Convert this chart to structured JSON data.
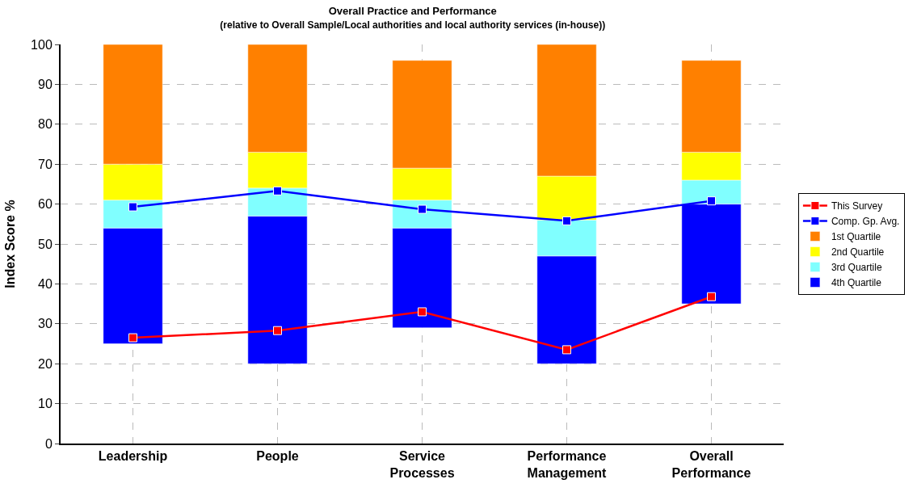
{
  "chart_data": {
    "type": "bar",
    "title": "Overall Practice and Performance",
    "subtitle": "(relative to Overall Sample/Local authorities and local authority services (in-house))",
    "ylabel": "Index Score %",
    "categories": [
      "Leadership",
      "People",
      "Service Processes",
      "Performance Management",
      "Overall Performance"
    ],
    "series": [
      {
        "name": "4th Quartile",
        "color": "#0000ff",
        "base": [
          25,
          20,
          29,
          20,
          35
        ],
        "values": [
          29,
          37,
          25,
          27,
          25
        ]
      },
      {
        "name": "3rd Quartile",
        "color": "#80ffff",
        "base": [
          54,
          57,
          54,
          47,
          60
        ],
        "values": [
          7,
          7,
          7,
          9,
          6
        ]
      },
      {
        "name": "2nd Quartile",
        "color": "#ffff00",
        "base": [
          61,
          64,
          61,
          56,
          66
        ],
        "values": [
          9,
          9,
          8,
          11,
          7
        ]
      },
      {
        "name": "1st Quartile",
        "color": "#ff8000",
        "base": [
          70,
          73,
          69,
          67,
          73
        ],
        "values": [
          30,
          27,
          27,
          33,
          23
        ]
      },
      {
        "name": "This Survey",
        "type": "line",
        "color": "#ff0000",
        "values": [
          26.5,
          28.3,
          33,
          23.5,
          36.8
        ]
      },
      {
        "name": "Comp. Gp. Avg.",
        "type": "line",
        "color": "#0000ff",
        "values": [
          59.3,
          63.3,
          58.7,
          55.8,
          60.8
        ]
      }
    ],
    "ylim": [
      0,
      100
    ],
    "yticks": [
      0,
      10,
      20,
      30,
      40,
      50,
      60,
      70,
      80,
      90,
      100
    ],
    "grid": true,
    "legend": "right",
    "marker": "square",
    "line_style": "solid"
  }
}
